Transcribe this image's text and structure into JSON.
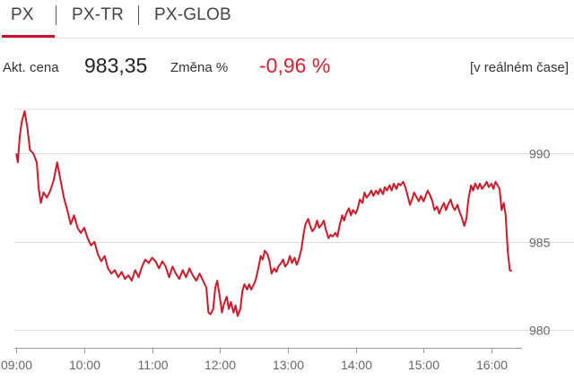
{
  "tabs": [
    {
      "label": "PX",
      "active": true
    },
    {
      "label": "PX-TR",
      "active": false
    },
    {
      "label": "PX-GLOB",
      "active": false
    }
  ],
  "quote": {
    "price_label": "Akt. cena",
    "price_value": "983,35",
    "change_label": "Změna %",
    "change_value": "-0,96 %",
    "realtime_label": "[v reálném čase]"
  },
  "colors": {
    "accent": "#c8102e",
    "negative": "#d62034",
    "line": "#cc1a2a",
    "grid": "#dedede"
  },
  "chart_data": {
    "type": "line",
    "x_unit": "time of day (hours)",
    "xlim": [
      8.97,
      16.45
    ],
    "ylim": [
      979.0,
      992.5
    ],
    "x_ticks": [
      {
        "value": 9.0,
        "label": "09:00"
      },
      {
        "value": 10.0,
        "label": "10:00"
      },
      {
        "value": 11.0,
        "label": "11:00"
      },
      {
        "value": 12.0,
        "label": "12:00"
      },
      {
        "value": 13.0,
        "label": "13:00"
      },
      {
        "value": 14.0,
        "label": "14:00"
      },
      {
        "value": 15.0,
        "label": "15:00"
      },
      {
        "value": 16.0,
        "label": "16:00"
      }
    ],
    "y_ticks": [
      {
        "value": 980,
        "label": "980"
      },
      {
        "value": 985,
        "label": "985"
      },
      {
        "value": 990,
        "label": "990"
      }
    ],
    "grid": true,
    "series": [
      {
        "values": [
          [
            9.0,
            990.0
          ],
          [
            9.02,
            989.5
          ],
          [
            9.05,
            991.0
          ],
          [
            9.08,
            991.8
          ],
          [
            9.12,
            992.4
          ],
          [
            9.16,
            991.5
          ],
          [
            9.2,
            990.2
          ],
          [
            9.25,
            990.0
          ],
          [
            9.3,
            989.5
          ],
          [
            9.33,
            988.0
          ],
          [
            9.36,
            987.2
          ],
          [
            9.4,
            987.8
          ],
          [
            9.45,
            987.5
          ],
          [
            9.5,
            987.9
          ],
          [
            9.55,
            988.5
          ],
          [
            9.6,
            989.5
          ],
          [
            9.65,
            988.5
          ],
          [
            9.7,
            987.5
          ],
          [
            9.75,
            986.8
          ],
          [
            9.8,
            986.0
          ],
          [
            9.85,
            986.5
          ],
          [
            9.9,
            985.8
          ],
          [
            9.95,
            985.5
          ],
          [
            10.0,
            985.8
          ],
          [
            10.05,
            985.2
          ],
          [
            10.1,
            984.8
          ],
          [
            10.15,
            985.0
          ],
          [
            10.2,
            984.3
          ],
          [
            10.25,
            983.9
          ],
          [
            10.3,
            984.2
          ],
          [
            10.35,
            983.5
          ],
          [
            10.4,
            983.2
          ],
          [
            10.45,
            983.4
          ],
          [
            10.5,
            983.0
          ],
          [
            10.55,
            983.3
          ],
          [
            10.6,
            982.9
          ],
          [
            10.65,
            983.1
          ],
          [
            10.7,
            982.8
          ],
          [
            10.75,
            983.4
          ],
          [
            10.8,
            983.0
          ],
          [
            10.85,
            983.6
          ],
          [
            10.9,
            984.0
          ],
          [
            10.95,
            983.8
          ],
          [
            11.0,
            984.1
          ],
          [
            11.05,
            983.9
          ],
          [
            11.1,
            983.5
          ],
          [
            11.15,
            983.9
          ],
          [
            11.2,
            983.6
          ],
          [
            11.25,
            983.0
          ],
          [
            11.3,
            983.6
          ],
          [
            11.35,
            983.2
          ],
          [
            11.4,
            982.9
          ],
          [
            11.45,
            983.4
          ],
          [
            11.5,
            983.0
          ],
          [
            11.55,
            983.5
          ],
          [
            11.6,
            983.1
          ],
          [
            11.65,
            982.8
          ],
          [
            11.7,
            983.2
          ],
          [
            11.75,
            982.8
          ],
          [
            11.8,
            982.4
          ],
          [
            11.83,
            981.0
          ],
          [
            11.86,
            980.9
          ],
          [
            11.9,
            981.2
          ],
          [
            11.93,
            982.4
          ],
          [
            11.96,
            982.8
          ],
          [
            12.0,
            981.8
          ],
          [
            12.03,
            981.0
          ],
          [
            12.06,
            981.5
          ],
          [
            12.1,
            981.9
          ],
          [
            12.13,
            981.2
          ],
          [
            12.16,
            981.6
          ],
          [
            12.2,
            981.0
          ],
          [
            12.23,
            981.4
          ],
          [
            12.26,
            980.8
          ],
          [
            12.3,
            981.2
          ],
          [
            12.33,
            982.2
          ],
          [
            12.36,
            982.6
          ],
          [
            12.4,
            982.3
          ],
          [
            12.43,
            982.6
          ],
          [
            12.46,
            982.3
          ],
          [
            12.5,
            982.6
          ],
          [
            12.53,
            982.9
          ],
          [
            12.56,
            983.4
          ],
          [
            12.6,
            984.2
          ],
          [
            12.63,
            984.0
          ],
          [
            12.66,
            984.5
          ],
          [
            12.7,
            984.3
          ],
          [
            12.73,
            983.9
          ],
          [
            12.76,
            983.2
          ],
          [
            12.8,
            983.5
          ],
          [
            12.83,
            983.3
          ],
          [
            12.86,
            983.6
          ],
          [
            12.9,
            983.8
          ],
          [
            12.93,
            984.0
          ],
          [
            12.96,
            983.6
          ],
          [
            13.0,
            983.8
          ],
          [
            13.03,
            984.2
          ],
          [
            13.06,
            983.8
          ],
          [
            13.1,
            984.1
          ],
          [
            13.13,
            983.7
          ],
          [
            13.16,
            984.0
          ],
          [
            13.2,
            984.6
          ],
          [
            13.23,
            985.4
          ],
          [
            13.26,
            986.0
          ],
          [
            13.3,
            986.3
          ],
          [
            13.33,
            985.9
          ],
          [
            13.36,
            985.6
          ],
          [
            13.4,
            985.8
          ],
          [
            13.43,
            986.2
          ],
          [
            13.46,
            985.8
          ],
          [
            13.5,
            986.0
          ],
          [
            13.53,
            986.2
          ],
          [
            13.56,
            985.7
          ],
          [
            13.6,
            985.2
          ],
          [
            13.63,
            985.4
          ],
          [
            13.66,
            985.3
          ],
          [
            13.7,
            985.5
          ],
          [
            13.73,
            985.3
          ],
          [
            13.76,
            985.9
          ],
          [
            13.8,
            986.5
          ],
          [
            13.83,
            986.2
          ],
          [
            13.86,
            986.6
          ],
          [
            13.9,
            986.9
          ],
          [
            13.93,
            986.5
          ],
          [
            13.96,
            986.8
          ],
          [
            14.0,
            986.6
          ],
          [
            14.03,
            986.9
          ],
          [
            14.06,
            987.4
          ],
          [
            14.1,
            987.2
          ],
          [
            14.13,
            987.8
          ],
          [
            14.16,
            987.5
          ],
          [
            14.2,
            987.7
          ],
          [
            14.23,
            987.9
          ],
          [
            14.26,
            987.6
          ],
          [
            14.3,
            987.9
          ],
          [
            14.33,
            987.7
          ],
          [
            14.36,
            988.0
          ],
          [
            14.4,
            987.7
          ],
          [
            14.43,
            988.1
          ],
          [
            14.46,
            987.9
          ],
          [
            14.5,
            988.2
          ],
          [
            14.53,
            987.9
          ],
          [
            14.56,
            988.3
          ],
          [
            14.6,
            988.0
          ],
          [
            14.63,
            988.3
          ],
          [
            14.66,
            988.2
          ],
          [
            14.7,
            988.4
          ],
          [
            14.73,
            988.1
          ],
          [
            14.76,
            987.7
          ],
          [
            14.8,
            987.1
          ],
          [
            14.83,
            987.4
          ],
          [
            14.86,
            987.8
          ],
          [
            14.9,
            987.5
          ],
          [
            14.93,
            987.3
          ],
          [
            14.96,
            987.6
          ],
          [
            15.0,
            987.3
          ],
          [
            15.03,
            987.6
          ],
          [
            15.06,
            987.9
          ],
          [
            15.1,
            987.6
          ],
          [
            15.13,
            987.3
          ],
          [
            15.16,
            986.8
          ],
          [
            15.2,
            987.0
          ],
          [
            15.23,
            986.6
          ],
          [
            15.26,
            986.9
          ],
          [
            15.3,
            987.2
          ],
          [
            15.33,
            986.8
          ],
          [
            15.36,
            987.1
          ],
          [
            15.4,
            987.4
          ],
          [
            15.43,
            987.0
          ],
          [
            15.46,
            986.8
          ],
          [
            15.5,
            987.1
          ],
          [
            15.53,
            986.7
          ],
          [
            15.56,
            986.4
          ],
          [
            15.6,
            985.9
          ],
          [
            15.63,
            986.3
          ],
          [
            15.66,
            987.4
          ],
          [
            15.7,
            988.2
          ],
          [
            15.73,
            987.9
          ],
          [
            15.76,
            988.3
          ],
          [
            15.8,
            988.0
          ],
          [
            15.83,
            988.3
          ],
          [
            15.86,
            988.0
          ],
          [
            15.9,
            988.2
          ],
          [
            15.93,
            988.4
          ],
          [
            15.96,
            988.1
          ],
          [
            16.0,
            988.3
          ],
          [
            16.03,
            988.0
          ],
          [
            16.06,
            988.4
          ],
          [
            16.09,
            988.2
          ],
          [
            16.12,
            988.0
          ],
          [
            16.15,
            986.8
          ],
          [
            16.18,
            987.2
          ],
          [
            16.21,
            986.5
          ],
          [
            16.24,
            984.5
          ],
          [
            16.27,
            983.4
          ],
          [
            16.3,
            983.35
          ]
        ]
      }
    ]
  }
}
